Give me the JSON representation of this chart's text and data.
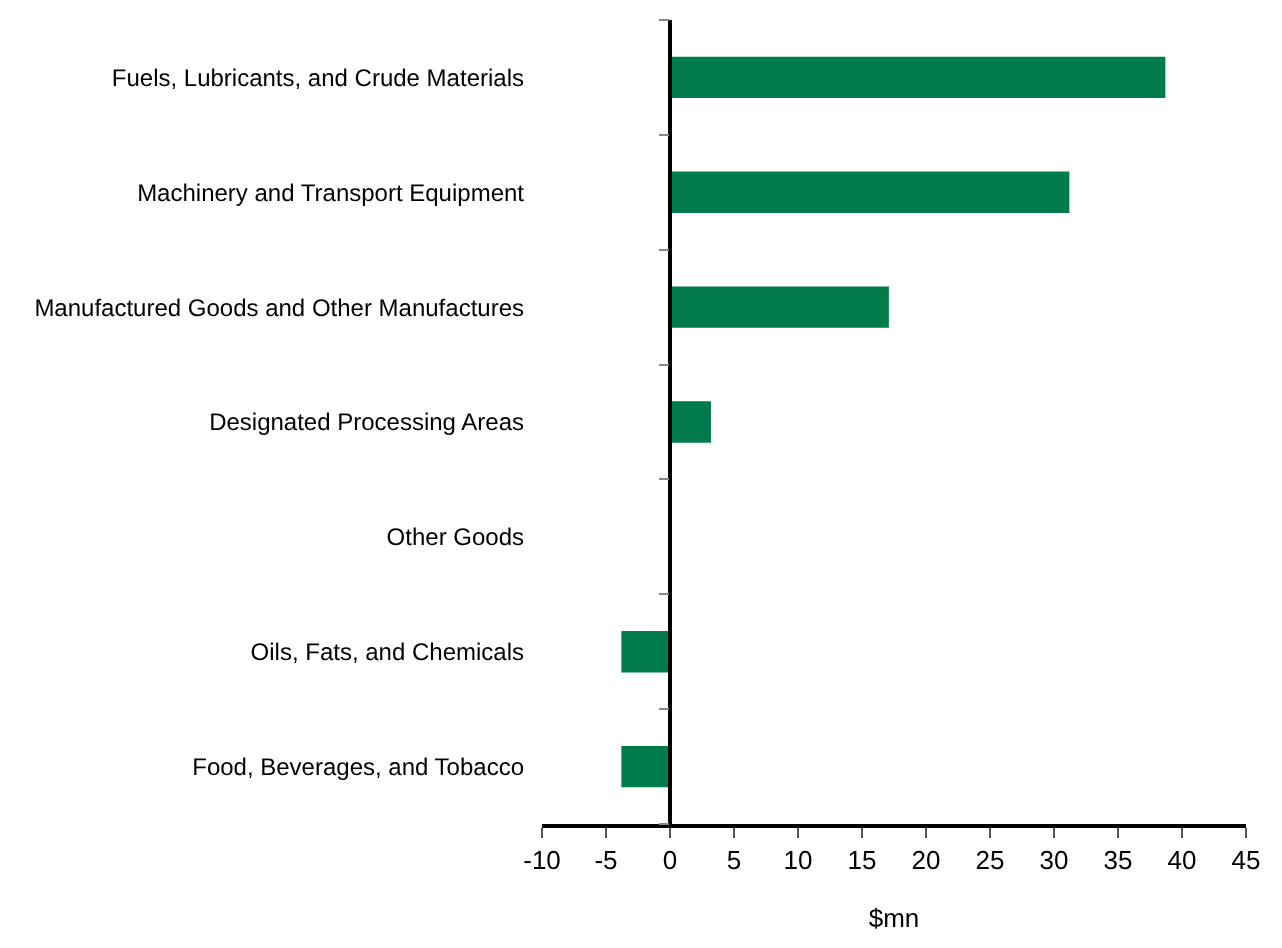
{
  "chart_data": {
    "type": "bar",
    "orientation": "horizontal",
    "categories": [
      "Fuels, Lubricants, and Crude Materials",
      "Machinery and Transport Equipment",
      "Manufactured Goods and Other Manufactures",
      "Designated Processing Areas",
      "Other Goods",
      "Oils, Fats, and Chemicals",
      "Food, Beverages, and Tobacco"
    ],
    "values": [
      38.7,
      31.2,
      17.1,
      3.2,
      0,
      -3.8,
      -3.8
    ],
    "color": "#007c4c",
    "xlabel": "$mn",
    "xlim": [
      -10,
      45
    ],
    "xticks": [
      -10,
      -5,
      0,
      5,
      10,
      15,
      20,
      25,
      30,
      35,
      40,
      45
    ]
  }
}
